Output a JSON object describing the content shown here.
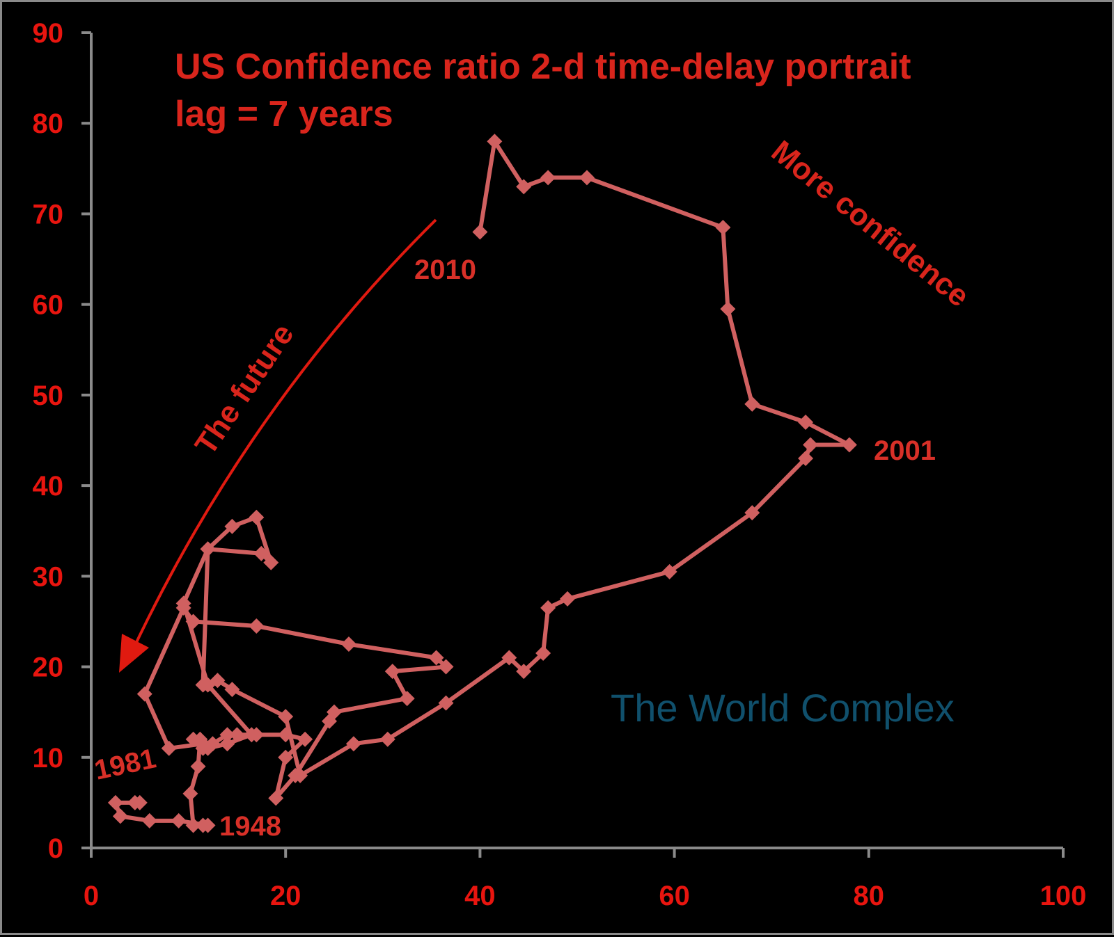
{
  "chart_data": {
    "type": "scatter",
    "title": "US Confidence ratio 2-d time-delay portrait",
    "subtitle": "lag = 7 years",
    "xlabel": "",
    "ylabel": "",
    "xlim": [
      0,
      100
    ],
    "ylim": [
      0,
      90
    ],
    "xticks": [
      "0",
      "20",
      "40",
      "60",
      "80",
      "100"
    ],
    "yticks": [
      "0",
      "10",
      "20",
      "30",
      "40",
      "50",
      "60",
      "70",
      "80",
      "90"
    ],
    "grid": false,
    "colors": {
      "series": "#d06060",
      "text": "#d9251c",
      "axis": "#8a8a8a",
      "watermark": "#10506c"
    },
    "series": [
      {
        "x": [
          11.5,
          10.5,
          10.2,
          11,
          11.2,
          10.5,
          11.5,
          12.5,
          14,
          15,
          17,
          20,
          22,
          20,
          19,
          21,
          24.5,
          25,
          32.5,
          31,
          36.5,
          35.5,
          26.5,
          17,
          10.5,
          9.5,
          5.5,
          8,
          11.5,
          12,
          14,
          16.5,
          12,
          9.5,
          12,
          14.5,
          17,
          18.5,
          17.5,
          12,
          11.5,
          13,
          14.5,
          20,
          21.5,
          27,
          30.5,
          36.5,
          43,
          44.5,
          46.5,
          47,
          49,
          59.5,
          68,
          73.5,
          74,
          78,
          73.5,
          68,
          65.5,
          65,
          51,
          47,
          44.5,
          41.5,
          40
        ],
        "y": [
          2.5,
          2.5,
          6,
          9,
          12,
          12,
          11,
          11.5,
          12.5,
          12.5,
          12.5,
          12.5,
          12,
          10,
          5.5,
          8,
          14,
          15,
          16.5,
          19.5,
          20,
          21,
          22.5,
          24.5,
          25,
          26.5,
          17,
          11,
          11.5,
          11,
          11.5,
          12.5,
          18,
          27,
          33,
          35.5,
          36.5,
          31.5,
          32.5,
          33,
          18,
          18.5,
          17.5,
          14.5,
          8,
          11.5,
          12,
          16,
          21,
          19.5,
          21.5,
          26.5,
          27.5,
          30.5,
          37,
          43,
          44.5,
          44.5,
          47,
          49,
          59.5,
          68.5,
          74,
          74,
          73,
          78,
          68
        ]
      },
      {
        "x": [
          12,
          9,
          6,
          3,
          2.5,
          4.5,
          5
        ],
        "y": [
          2.5,
          3,
          3,
          3.5,
          5,
          5,
          5
        ]
      }
    ],
    "annotations": {
      "year_2010": "2010",
      "year_2001": "2001",
      "year_1981": "1981",
      "year_1948": "1948",
      "more_confidence": "More confidence",
      "the_future": "The future",
      "watermark": "The World Complex"
    }
  }
}
